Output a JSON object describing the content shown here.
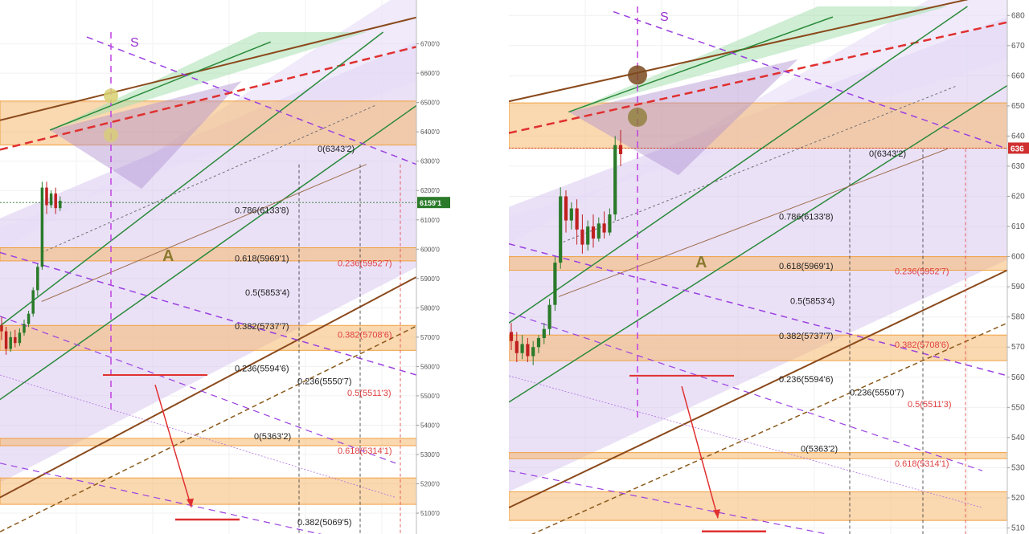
{
  "chart_data": [
    {
      "type": "candlestick",
      "title": "",
      "price_axis": {
        "ticks": [
          "6700'0",
          "6600'0",
          "6500'0",
          "6400'0",
          "6300'0",
          "6200'0",
          "6100'0",
          "6000'0",
          "5900'0",
          "5800'0",
          "5700'0",
          "5600'0",
          "5500'0",
          "5400'0",
          "5300'0",
          "5200'0",
          "5100'0"
        ],
        "ylim": [
          5070,
          6740
        ]
      },
      "current_price_label": "6159'1",
      "fib_levels": [
        {
          "label": "0(6343'2)",
          "price": 6343.2,
          "color": "#222222"
        },
        {
          "label": "0.786(6133'8)",
          "price": 6133.8,
          "color": "#222222"
        },
        {
          "label": "0.618(5969'1)",
          "price": 5969.1,
          "color": "#222222"
        },
        {
          "label": "0.236(5952'7)",
          "price": 5952.7,
          "color": "#e04040"
        },
        {
          "label": "0.5(5853'4)",
          "price": 5853.4,
          "color": "#222222"
        },
        {
          "label": "0.382(5737'7)",
          "price": 5737.7,
          "color": "#222222"
        },
        {
          "label": "0.382(5708'6)",
          "price": 5708.6,
          "color": "#e04040"
        },
        {
          "label": "0.236(5594'6)",
          "price": 5594.6,
          "color": "#222222"
        },
        {
          "label": "0.236(5550'7)",
          "price": 5550.7,
          "color": "#222222"
        },
        {
          "label": "0.5(5511'3)",
          "price": 5511.3,
          "color": "#e04040"
        },
        {
          "label": "0(5363'2)",
          "price": 5363.2,
          "color": "#222222"
        },
        {
          "label": "0.618(5314'1)",
          "price": 5314.1,
          "color": "#e04040"
        },
        {
          "label": "0.382(5069'5)",
          "price": 5069.5,
          "color": "#222222"
        }
      ],
      "annotations": {
        "s_label": "S",
        "a_label": "A"
      },
      "zones": [
        {
          "from": 6355,
          "to": 6505,
          "color": "#f5b870"
        },
        {
          "from": 5960,
          "to": 6005,
          "color": "#f5b870"
        },
        {
          "from": 5655,
          "to": 5740,
          "color": "#f5b870"
        },
        {
          "from": 5330,
          "to": 5355,
          "color": "#f5b870"
        },
        {
          "from": 5130,
          "to": 5220,
          "color": "#f5b870"
        }
      ],
      "candles": [
        {
          "o": 5740,
          "h": 5770,
          "c": 5720,
          "l": 5690
        },
        {
          "o": 5720,
          "h": 5735,
          "c": 5660,
          "l": 5640
        },
        {
          "o": 5660,
          "h": 5720,
          "c": 5700,
          "l": 5650
        },
        {
          "o": 5700,
          "h": 5725,
          "c": 5680,
          "l": 5665
        },
        {
          "o": 5680,
          "h": 5730,
          "c": 5715,
          "l": 5670
        },
        {
          "o": 5715,
          "h": 5760,
          "c": 5745,
          "l": 5705
        },
        {
          "o": 5745,
          "h": 5790,
          "c": 5780,
          "l": 5735
        },
        {
          "o": 5780,
          "h": 5870,
          "c": 5860,
          "l": 5770
        },
        {
          "o": 5860,
          "h": 5950,
          "c": 5940,
          "l": 5840
        },
        {
          "o": 5940,
          "h": 6230,
          "c": 6210,
          "l": 5930
        },
        {
          "o": 6210,
          "h": 6230,
          "c": 6150,
          "l": 6120
        },
        {
          "o": 6150,
          "h": 6200,
          "c": 6190,
          "l": 6140
        },
        {
          "o": 6190,
          "h": 6210,
          "c": 6140,
          "l": 6120
        },
        {
          "o": 6140,
          "h": 6180,
          "c": 6165,
          "l": 6130
        }
      ]
    },
    {
      "type": "candlestick",
      "title": "",
      "price_axis": {
        "ticks": [
          "680",
          "670",
          "660",
          "650",
          "640",
          "630",
          "620",
          "610",
          "600",
          "590",
          "580",
          "570",
          "560",
          "550",
          "540",
          "530",
          "520",
          "510"
        ],
        "ylim": [
          508,
          683
        ]
      },
      "current_price_label": "636",
      "fib_levels": [
        {
          "label": "0(6343'2)",
          "price": 634.32,
          "color": "#222222"
        },
        {
          "label": "0.786(6133'8)",
          "price": 613.38,
          "color": "#222222"
        },
        {
          "label": "0.618(5969'1)",
          "price": 596.91,
          "color": "#222222"
        },
        {
          "label": "0.236(5952'7)",
          "price": 595.27,
          "color": "#e04040"
        },
        {
          "label": "0.5(5853'4)",
          "price": 585.34,
          "color": "#222222"
        },
        {
          "label": "0.382(5737'7)",
          "price": 573.77,
          "color": "#222222"
        },
        {
          "label": "0.382(5708'6)",
          "price": 570.86,
          "color": "#e04040"
        },
        {
          "label": "0.236(5594'6)",
          "price": 559.46,
          "color": "#222222"
        },
        {
          "label": "0.236(5550'7)",
          "price": 555.07,
          "color": "#222222"
        },
        {
          "label": "0.5(5511'3)",
          "price": 551.13,
          "color": "#e04040"
        },
        {
          "label": "0(5363'2)",
          "price": 536.32,
          "color": "#222222"
        },
        {
          "label": "0.618(5314'1)",
          "price": 531.41,
          "color": "#e04040"
        }
      ],
      "annotations": {
        "s_label": "S",
        "a_label": "A"
      },
      "zones": [
        {
          "from": 636,
          "to": 651,
          "color": "#f5b870"
        },
        {
          "from": 595.5,
          "to": 600,
          "color": "#f5b870"
        },
        {
          "from": 565.5,
          "to": 574,
          "color": "#f5b870"
        },
        {
          "from": 533,
          "to": 535,
          "color": "#f5b870"
        },
        {
          "from": 512.5,
          "to": 522,
          "color": "#f5b870"
        }
      ],
      "candles": [
        {
          "o": 575,
          "h": 578,
          "c": 572,
          "l": 569
        },
        {
          "o": 572,
          "h": 575,
          "c": 568,
          "l": 565
        },
        {
          "o": 568,
          "h": 574,
          "c": 571,
          "l": 566
        },
        {
          "o": 571,
          "h": 573,
          "c": 567,
          "l": 565
        },
        {
          "o": 567,
          "h": 572,
          "c": 570,
          "l": 564
        },
        {
          "o": 570,
          "h": 574,
          "c": 573,
          "l": 568
        },
        {
          "o": 573,
          "h": 578,
          "c": 576,
          "l": 571
        },
        {
          "o": 576,
          "h": 586,
          "c": 584,
          "l": 574
        },
        {
          "o": 584,
          "h": 600,
          "c": 598,
          "l": 582
        },
        {
          "o": 598,
          "h": 623,
          "c": 620,
          "l": 596
        },
        {
          "o": 620,
          "h": 622,
          "c": 612,
          "l": 608
        },
        {
          "o": 612,
          "h": 618,
          "c": 616,
          "l": 609
        },
        {
          "o": 616,
          "h": 619,
          "c": 609,
          "l": 604
        },
        {
          "o": 609,
          "h": 614,
          "c": 604,
          "l": 601
        },
        {
          "o": 604,
          "h": 612,
          "c": 610,
          "l": 602
        },
        {
          "o": 610,
          "h": 614,
          "c": 606,
          "l": 603
        },
        {
          "o": 606,
          "h": 613,
          "c": 611,
          "l": 605
        },
        {
          "o": 611,
          "h": 615,
          "c": 608,
          "l": 606
        },
        {
          "o": 608,
          "h": 616,
          "c": 614,
          "l": 607
        },
        {
          "o": 614,
          "h": 640,
          "c": 637,
          "l": 612
        },
        {
          "o": 637,
          "h": 642,
          "c": 634,
          "l": 630
        }
      ]
    }
  ]
}
